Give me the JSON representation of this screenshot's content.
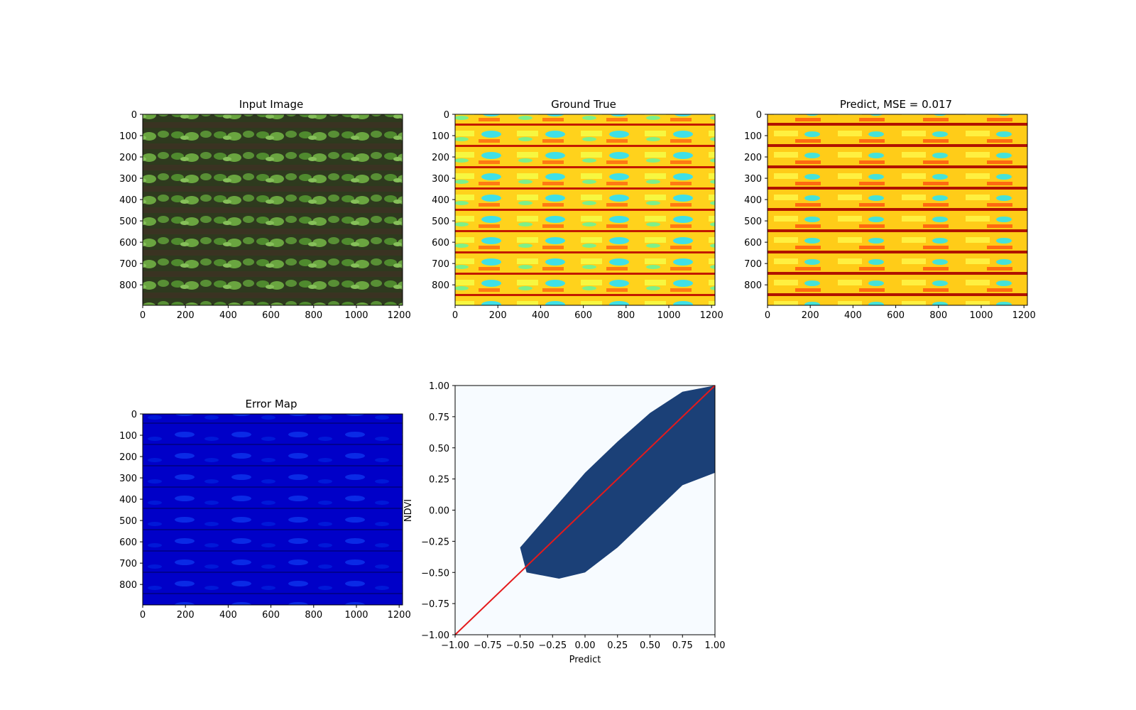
{
  "figure": {
    "panels": [
      {
        "id": "input",
        "title": "Input Image",
        "image_kind": "crop-field-rgb"
      },
      {
        "id": "ground",
        "title": "Ground True",
        "image_kind": "ndvi-jet-map"
      },
      {
        "id": "predict",
        "title": "Predict, MSE = 0.017",
        "image_kind": "ndvi-jet-map"
      },
      {
        "id": "error",
        "title": "Error Map",
        "image_kind": "error-jet-map"
      }
    ]
  },
  "chart_data": [
    {
      "type": "heatmap",
      "title": "Input Image",
      "xlim": [
        0,
        1216
      ],
      "ylim": [
        896,
        0
      ],
      "xticks": [
        0,
        200,
        400,
        600,
        800,
        1000,
        1200
      ],
      "yticks": [
        0,
        100,
        200,
        300,
        400,
        500,
        600,
        700,
        800
      ]
    },
    {
      "type": "heatmap",
      "title": "Ground True",
      "colormap": "jet",
      "xlim": [
        0,
        1216
      ],
      "ylim": [
        896,
        0
      ],
      "xticks": [
        0,
        200,
        400,
        600,
        800,
        1000,
        1200
      ],
      "yticks": [
        0,
        100,
        200,
        300,
        400,
        500,
        600,
        700,
        800
      ]
    },
    {
      "type": "heatmap",
      "title": "Predict, MSE = 0.017",
      "colormap": "jet",
      "xlim": [
        0,
        1216
      ],
      "ylim": [
        896,
        0
      ],
      "xticks": [
        0,
        200,
        400,
        600,
        800,
        1000,
        1200
      ],
      "yticks": [
        0,
        100,
        200,
        300,
        400,
        500,
        600,
        700,
        800
      ]
    },
    {
      "type": "heatmap",
      "title": "Error Map",
      "colormap": "jet",
      "xlim": [
        0,
        1216
      ],
      "ylim": [
        896,
        0
      ],
      "xticks": [
        0,
        200,
        400,
        600,
        800,
        1000,
        1200
      ],
      "yticks": [
        0,
        100,
        200,
        300,
        400,
        500,
        600,
        700,
        800
      ]
    },
    {
      "type": "scatter",
      "title": "",
      "xlabel": "Predict",
      "ylabel": "NDVI",
      "xlim": [
        -1.0,
        1.0
      ],
      "ylim": [
        -1.0,
        1.0
      ],
      "xticks": [
        "−1.00",
        "−0.75",
        "−0.50",
        "−0.25",
        "0.00",
        "0.25",
        "0.50",
        "0.75",
        "1.00"
      ],
      "yticks": [
        "−1.00",
        "−0.75",
        "−0.50",
        "−0.25",
        "0.00",
        "0.25",
        "0.50",
        "0.75",
        "1.00"
      ],
      "reference_line": {
        "color": "#e41a1c",
        "from": [
          -1.0,
          -1.0
        ],
        "to": [
          1.0,
          1.0
        ]
      },
      "point_color": "#08306b",
      "background": "#f7fbff",
      "cloud_envelope": {
        "description": "dense point cloud around y = x; points extend from about x=-0.45 to 1.0",
        "upper": [
          [
            -0.5,
            -0.3
          ],
          [
            -0.25,
            0.0
          ],
          [
            0.0,
            0.3
          ],
          [
            0.25,
            0.55
          ],
          [
            0.5,
            0.78
          ],
          [
            0.75,
            0.95
          ],
          [
            1.0,
            1.0
          ]
        ],
        "lower": [
          [
            -0.45,
            -0.5
          ],
          [
            -0.2,
            -0.55
          ],
          [
            0.0,
            -0.5
          ],
          [
            0.25,
            -0.3
          ],
          [
            0.5,
            -0.05
          ],
          [
            0.75,
            0.2
          ],
          [
            1.0,
            0.3
          ]
        ]
      }
    }
  ]
}
